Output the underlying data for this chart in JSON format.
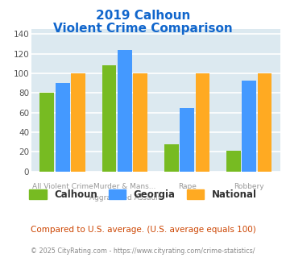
{
  "title_line1": "2019 Calhoun",
  "title_line2": "Violent Crime Comparison",
  "categories": [
    "All Violent Crime",
    "Murder & Mans...\nAggravated Assault",
    "Rape",
    "Robbery"
  ],
  "series": {
    "Calhoun": [
      80,
      108,
      28,
      21
    ],
    "Georgia": [
      90,
      124,
      65,
      93
    ],
    "National": [
      100,
      100,
      100,
      100
    ]
  },
  "colors": {
    "Calhoun": "#77bb22",
    "Georgia": "#4499ff",
    "National": "#ffaa22"
  },
  "ylim": [
    0,
    145
  ],
  "yticks": [
    0,
    20,
    40,
    60,
    80,
    100,
    120,
    140
  ],
  "background_color": "#dce9f0",
  "grid_color": "#ffffff",
  "title_color": "#1166cc",
  "xlabel_color": "#999999",
  "footer_text": "Compared to U.S. average. (U.S. average equals 100)",
  "copyright_text": "© 2025 CityRating.com - https://www.cityrating.com/crime-statistics/",
  "footer_color": "#cc4400",
  "copyright_color": "#888888"
}
